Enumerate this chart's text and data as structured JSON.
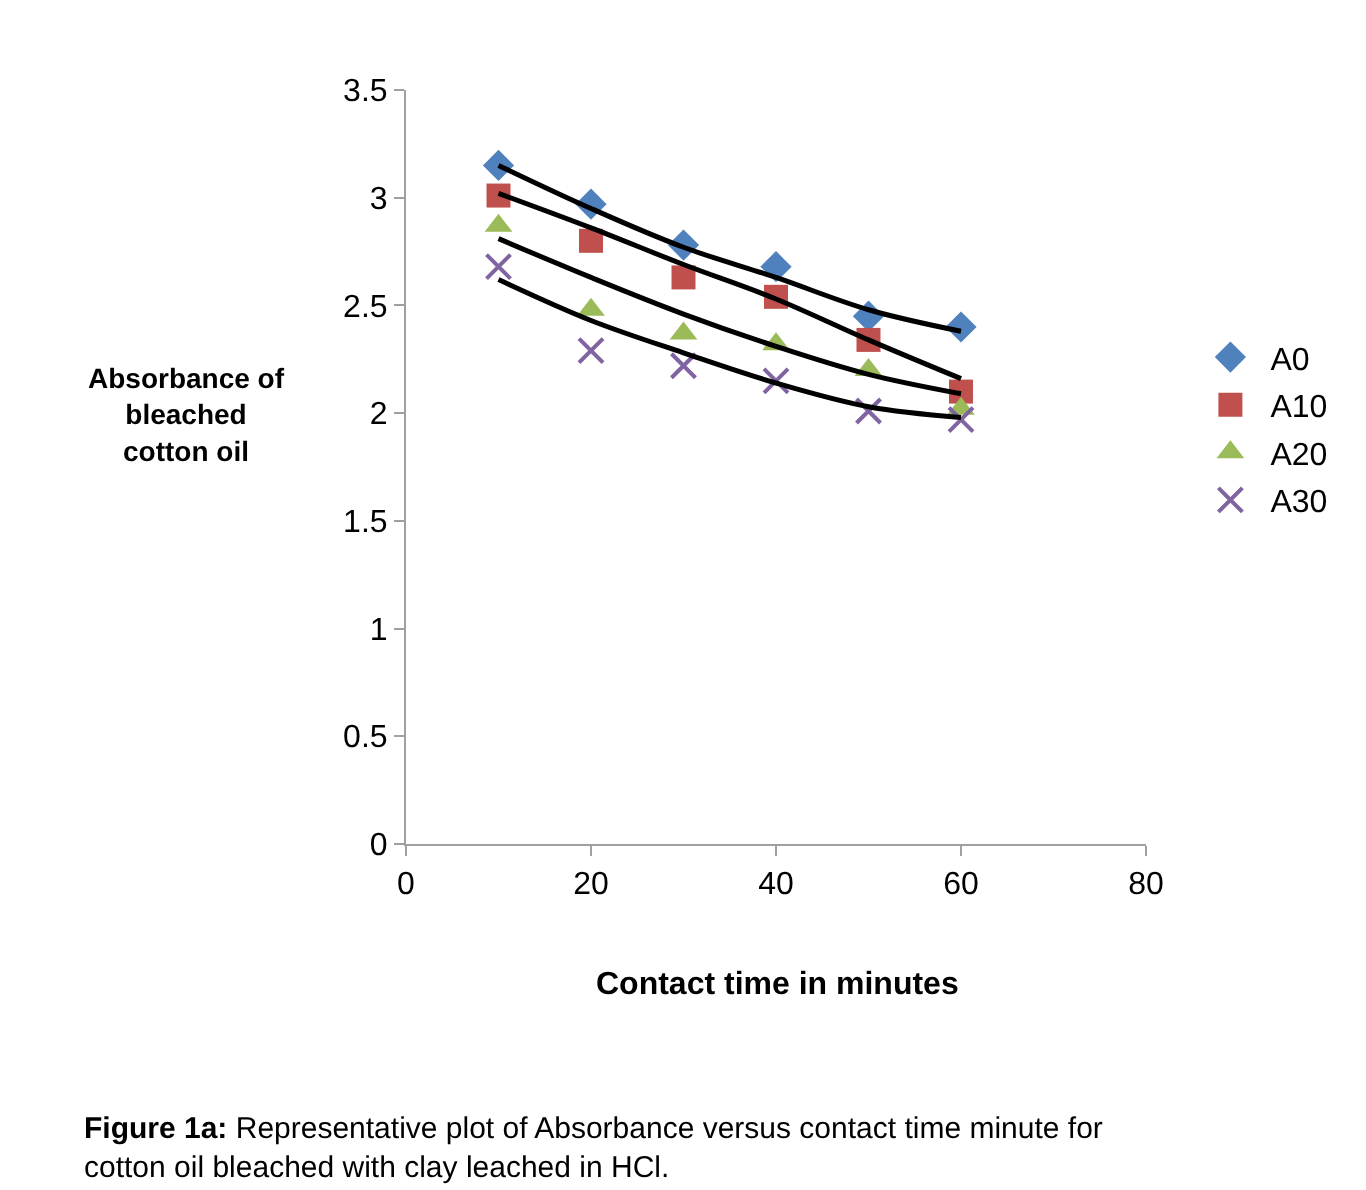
{
  "chart_data": {
    "type": "scatter",
    "xlabel": "Contact time in minutes",
    "ylabel": "Absorbance of bleached cotton oil",
    "xlim": [
      0,
      80
    ],
    "xticks": [
      0,
      20,
      40,
      60,
      80
    ],
    "ylim": [
      0,
      3.5
    ],
    "yticks": [
      0,
      0.5,
      1,
      1.5,
      2,
      2.5,
      3,
      3.5
    ],
    "legend": "right",
    "x": [
      10,
      20,
      30,
      40,
      50,
      60
    ],
    "series": [
      {
        "name": "A0",
        "color": "#4f81bd",
        "marker": "diamond",
        "values": [
          3.15,
          2.97,
          2.78,
          2.68,
          2.45,
          2.4
        ]
      },
      {
        "name": "A10",
        "color": "#c0504d",
        "marker": "square",
        "values": [
          3.01,
          2.8,
          2.63,
          2.54,
          2.34,
          2.1
        ]
      },
      {
        "name": "A20",
        "color": "#9bbb59",
        "marker": "triangle",
        "values": [
          2.87,
          2.48,
          2.37,
          2.32,
          2.2,
          2.02
        ]
      },
      {
        "name": "A30",
        "color": "#8064a2",
        "marker": "cross",
        "values": [
          2.68,
          2.29,
          2.22,
          2.15,
          2.01,
          1.97
        ]
      },
      {
        "type": "line",
        "color": "#000000",
        "values": [
          3.15,
          2.95,
          2.77,
          2.63,
          2.48,
          2.38
        ]
      },
      {
        "type": "line",
        "color": "#000000",
        "values": [
          3.02,
          2.86,
          2.69,
          2.53,
          2.34,
          2.16
        ]
      },
      {
        "type": "line",
        "color": "#000000",
        "values": [
          2.81,
          2.63,
          2.46,
          2.31,
          2.18,
          2.09
        ]
      },
      {
        "type": "line",
        "color": "#000000",
        "values": [
          2.62,
          2.43,
          2.28,
          2.14,
          2.03,
          1.98
        ]
      }
    ],
    "annotations": [
      "Figure 1a: Representative plot of Absorbance versus contact time minute for cotton oil bleached with clay leached in HCl."
    ]
  }
}
